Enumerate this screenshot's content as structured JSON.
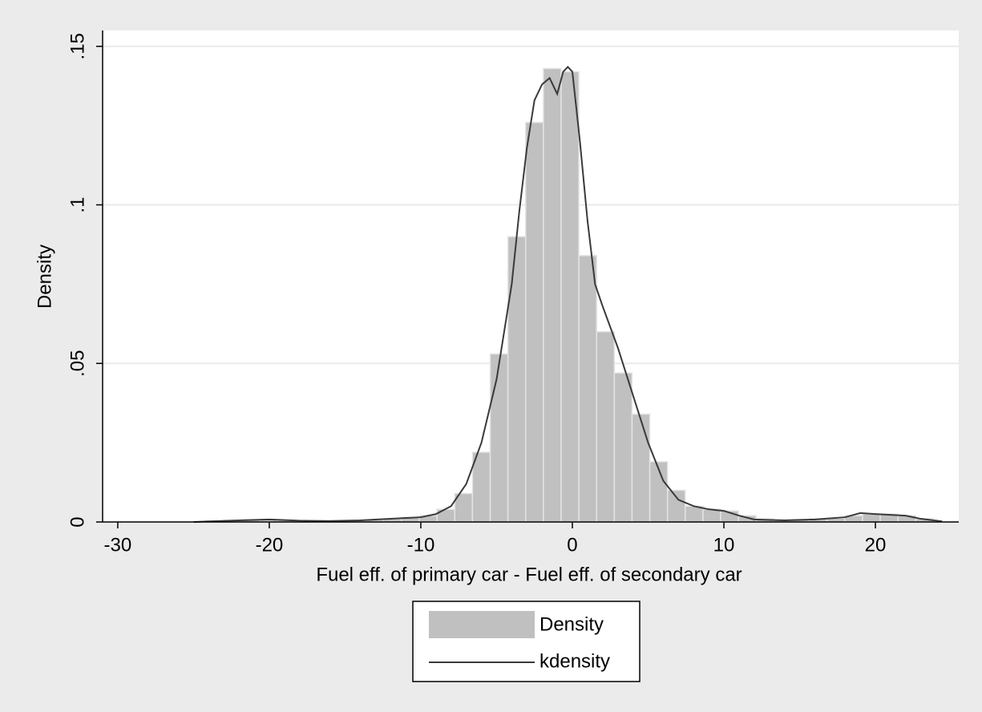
{
  "chart_data": {
    "type": "histogram",
    "x_label": "Fuel eff. of primary car - Fuel eff. of secondary car",
    "y_label": "Density",
    "xlim": [
      -31,
      25.5
    ],
    "xticks": [
      -30,
      -20,
      -10,
      0,
      10,
      20
    ],
    "ylim": [
      0,
      0.155
    ],
    "yticks": [
      0,
      {
        "value": 0.05,
        "label": ".05"
      },
      {
        "value": 0.1,
        "label": ".1"
      },
      {
        "value": 0.15,
        "label": ".15"
      }
    ],
    "grid": true,
    "legend_position": "bottom",
    "series": [
      {
        "name": "Density",
        "type": "histogram",
        "color": "#c0c0c0",
        "bins": [
          -24.14,
          -22.97,
          -21.8,
          -20.63,
          -19.46,
          -18.29,
          -17.12,
          -15.95,
          -14.78,
          -13.61,
          -12.44,
          -11.27,
          -10.1,
          -8.93,
          -7.76,
          -6.59,
          -5.42,
          -4.25,
          -3.08,
          -1.91,
          -0.74,
          0.43,
          1.6,
          2.77,
          3.94,
          5.11,
          6.28,
          7.45,
          8.62,
          9.79,
          10.96,
          12.13,
          13.3,
          14.47,
          15.64,
          16.81,
          17.98,
          19.15,
          20.32,
          21.49,
          22.66,
          23.83
        ],
        "values": [
          0.0003,
          0.0005,
          0.0007,
          0.0006,
          0.0005,
          0.0003,
          0.0004,
          0.0005,
          0.0005,
          0.0007,
          0.001,
          0.0015,
          0.002,
          0.004,
          0.009,
          0.022,
          0.053,
          0.09,
          0.126,
          0.143,
          0.142,
          0.084,
          0.06,
          0.047,
          0.034,
          0.019,
          0.01,
          0.005,
          0.004,
          0.0035,
          0.002,
          0.001,
          0.0007,
          0.0008,
          0.001,
          0.0012,
          0.002,
          0.0025,
          0.0025,
          0.002,
          0.001
        ]
      },
      {
        "name": "kdensity",
        "type": "line",
        "color": "#3a3a3a",
        "x": [
          -25,
          -22,
          -20,
          -18,
          -16,
          -14,
          -12,
          -10,
          -9,
          -8,
          -7,
          -6,
          -5,
          -4,
          -3.5,
          -3,
          -2.5,
          -2,
          -1.5,
          -1,
          -0.6,
          -0.3,
          0,
          0.5,
          1,
          1.5,
          2,
          3,
          4,
          5,
          6,
          7,
          8,
          9,
          10,
          11,
          12,
          14,
          16,
          18,
          19,
          20,
          22,
          23,
          24.4
        ],
        "values": [
          0,
          0.0005,
          0.0008,
          0.0004,
          0.0003,
          0.0005,
          0.001,
          0.0015,
          0.0025,
          0.005,
          0.012,
          0.025,
          0.045,
          0.075,
          0.098,
          0.118,
          0.133,
          0.138,
          0.14,
          0.135,
          0.142,
          0.1435,
          0.142,
          0.12,
          0.095,
          0.075,
          0.068,
          0.055,
          0.04,
          0.025,
          0.013,
          0.007,
          0.005,
          0.004,
          0.0035,
          0.002,
          0.0008,
          0.0005,
          0.0008,
          0.0015,
          0.0028,
          0.0025,
          0.002,
          0.001,
          0.0002
        ]
      }
    ]
  }
}
